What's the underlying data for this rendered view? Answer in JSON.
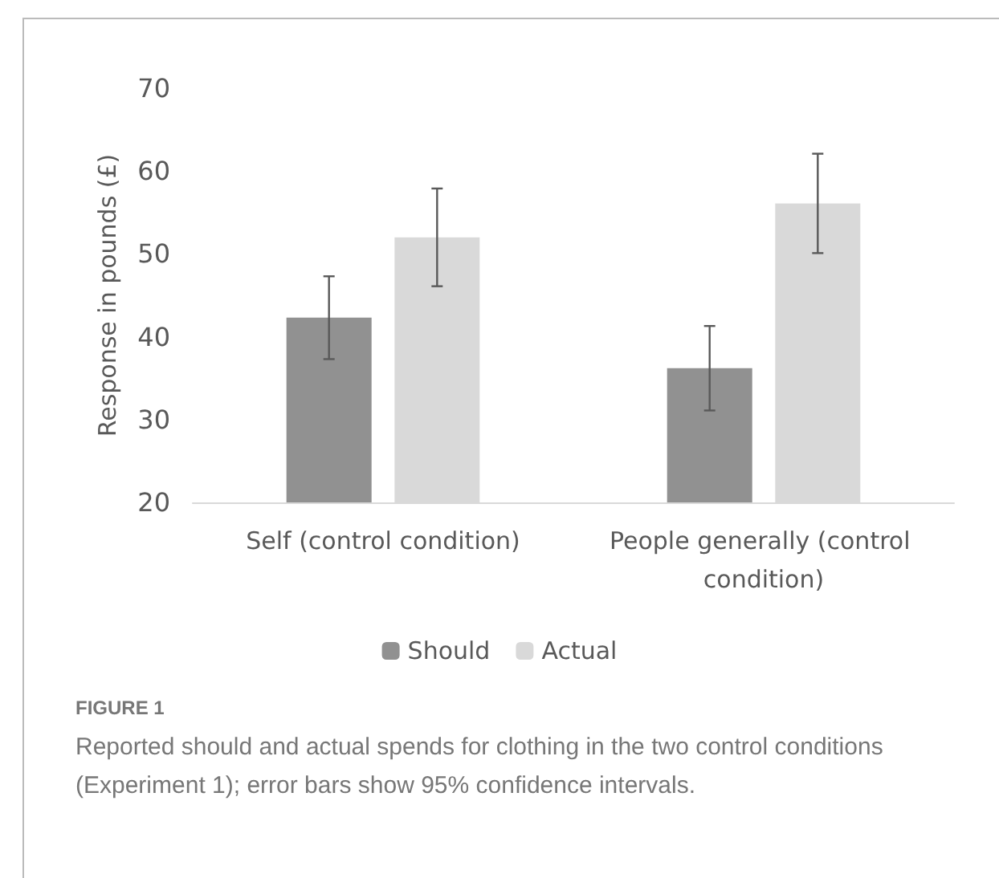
{
  "chart_data": {
    "type": "bar",
    "title": "FIGURE 1",
    "ylabel": "Response in pounds (£)",
    "categories": [
      "Self (control condition)",
      "People generally (control condition)"
    ],
    "series": [
      {
        "name": "Should",
        "color": "#919191",
        "values": [
          42.3,
          36.2
        ],
        "errors": [
          5.0,
          5.1
        ]
      },
      {
        "name": "Actual",
        "color": "#d9d9d9",
        "values": [
          52.0,
          56.1
        ],
        "errors": [
          5.9,
          6.0
        ]
      }
    ],
    "ylim": [
      20,
      70
    ],
    "yticks": [
      20,
      30,
      40,
      50,
      60,
      70
    ],
    "grid": false,
    "legend": "bottom",
    "annotations": [
      "Reported should and actual spends for clothing in the two control conditions (Experiment 1); error bars show 95% confidence intervals."
    ]
  }
}
